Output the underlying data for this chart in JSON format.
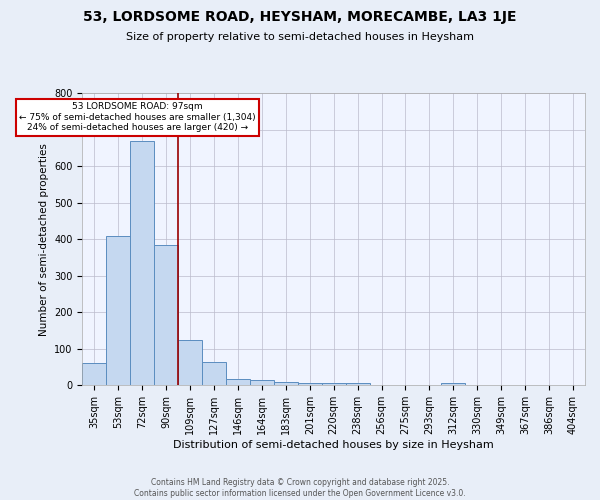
{
  "title": "53, LORDSOME ROAD, HEYSHAM, MORECAMBE, LA3 1JE",
  "subtitle": "Size of property relative to semi-detached houses in Heysham",
  "xlabel": "Distribution of semi-detached houses by size in Heysham",
  "ylabel": "Number of semi-detached properties",
  "categories": [
    "35sqm",
    "53sqm",
    "72sqm",
    "90sqm",
    "109sqm",
    "127sqm",
    "146sqm",
    "164sqm",
    "183sqm",
    "201sqm",
    "220sqm",
    "238sqm",
    "256sqm",
    "275sqm",
    "293sqm",
    "312sqm",
    "330sqm",
    "349sqm",
    "367sqm",
    "386sqm",
    "404sqm"
  ],
  "values": [
    62,
    408,
    668,
    383,
    125,
    63,
    18,
    13,
    10,
    5,
    5,
    6,
    0,
    0,
    0,
    5,
    0,
    0,
    0,
    0,
    0
  ],
  "bar_color": "#c5d8f0",
  "bar_edge_color": "#5b8dc0",
  "red_line_x": 3.5,
  "annotation_text": "53 LORDSOME ROAD: 97sqm\n← 75% of semi-detached houses are smaller (1,304)\n24% of semi-detached houses are larger (420) →",
  "annotation_box_color": "#ffffff",
  "annotation_box_edge": "#cc0000",
  "ylim": [
    0,
    800
  ],
  "yticks": [
    0,
    100,
    200,
    300,
    400,
    500,
    600,
    700,
    800
  ],
  "footer": "Contains HM Land Registry data © Crown copyright and database right 2025.\nContains public sector information licensed under the Open Government Licence v3.0.",
  "bg_color": "#e8eef8",
  "plot_bg_color": "#f0f4ff",
  "grid_color": "#bbbbcc",
  "title_fontsize": 10,
  "subtitle_fontsize": 8,
  "xlabel_fontsize": 8,
  "ylabel_fontsize": 7.5,
  "tick_fontsize": 7,
  "footer_fontsize": 5.5
}
